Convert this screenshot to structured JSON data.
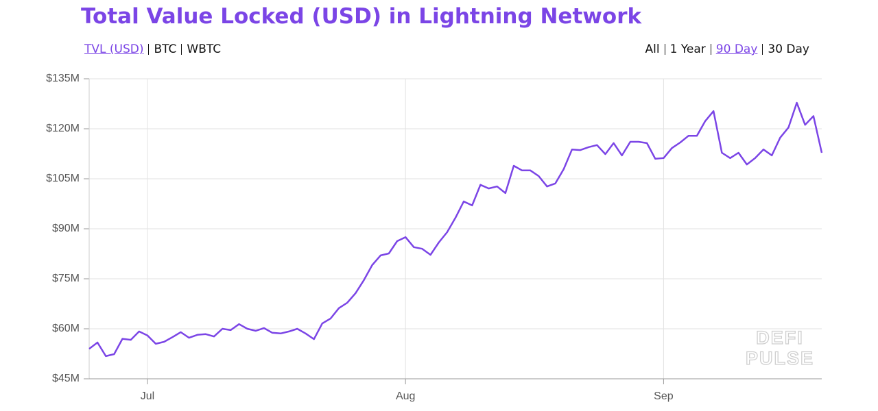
{
  "chart_data": {
    "type": "line",
    "title": "Total Value Locked (USD) in Lightning Network",
    "unit_options": [
      "TVL (USD)",
      "BTC",
      "WBTC"
    ],
    "selected_unit": 0,
    "range_options": [
      "All",
      "1 Year",
      "90 Day",
      "30 Day"
    ],
    "selected_range": 2,
    "watermark": [
      "DEFI",
      "PULSE"
    ],
    "categories": [
      null,
      null,
      null,
      null,
      null,
      null,
      null,
      "Jul",
      null,
      null,
      null,
      null,
      null,
      null,
      null,
      null,
      null,
      null,
      null,
      null,
      null,
      null,
      null,
      null,
      null,
      null,
      null,
      null,
      null,
      null,
      null,
      null,
      null,
      null,
      null,
      null,
      null,
      null,
      "Aug",
      null,
      null,
      null,
      null,
      null,
      null,
      null,
      null,
      null,
      null,
      null,
      null,
      null,
      null,
      null,
      null,
      null,
      null,
      null,
      null,
      null,
      null,
      null,
      null,
      null,
      null,
      null,
      null,
      null,
      null,
      "Sep",
      null,
      null,
      null,
      null,
      null,
      null,
      null,
      null,
      null,
      null,
      null,
      null,
      null,
      null,
      null,
      null,
      null,
      null,
      null
    ],
    "series": [
      {
        "color": "#7b45e6",
        "values": [
          54.0,
          55.9,
          51.8,
          52.4,
          57.0,
          56.7,
          59.2,
          58.0,
          55.5,
          56.1,
          57.5,
          59.0,
          57.3,
          58.2,
          58.4,
          57.7,
          60.0,
          59.6,
          61.4,
          60.0,
          59.4,
          60.2,
          58.8,
          58.6,
          59.2,
          60.0,
          58.6,
          56.9,
          61.6,
          63.1,
          66.2,
          67.8,
          70.7,
          74.6,
          79.1,
          82.0,
          82.6,
          86.3,
          87.5,
          84.5,
          84.0,
          82.2,
          85.9,
          89.0,
          93.3,
          98.2,
          97.0,
          103.2,
          102.1,
          102.7,
          100.7,
          108.9,
          107.5,
          107.5,
          105.8,
          102.7,
          103.6,
          107.9,
          113.8,
          113.6,
          114.5,
          115.1,
          112.4,
          115.7,
          112.0,
          116.1,
          116.1,
          115.7,
          111.0,
          111.2,
          114.2,
          115.9,
          117.9,
          117.9,
          122.3,
          125.3,
          112.8,
          111.2,
          112.8,
          109.3,
          111.2,
          113.8,
          112.0,
          117.3,
          120.4,
          127.8,
          121.2,
          123.8,
          112.8
        ]
      }
    ],
    "ylim": [
      45,
      135
    ],
    "yticks": [
      {
        "value": 45,
        "label": "$45M"
      },
      {
        "value": 60,
        "label": "$60M"
      },
      {
        "value": 75,
        "label": "$75M"
      },
      {
        "value": 90,
        "label": "$90M"
      },
      {
        "value": 105,
        "label": "$105M"
      },
      {
        "value": 120,
        "label": "$120M"
      },
      {
        "value": 135,
        "label": "$135M"
      }
    ],
    "grid": true
  }
}
